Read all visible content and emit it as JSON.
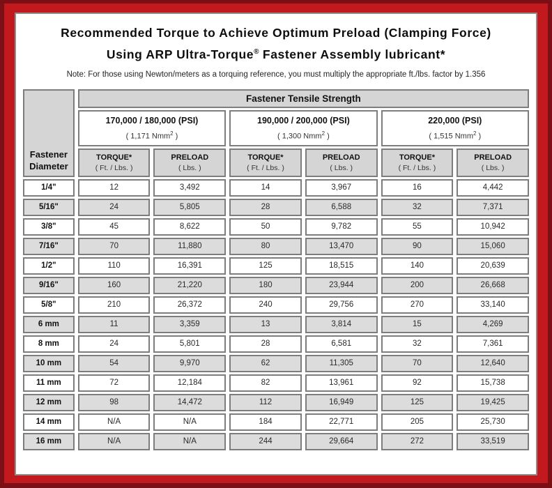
{
  "title": {
    "line1": "Recommended Torque to Achieve Optimum Preload (Clamping Force)",
    "line2_pre": "Using ARP Ultra-Torque",
    "line2_sup": "®",
    "line2_post": " Fastener Assembly lubricant*"
  },
  "note": "Note: For those using Newton/meters as a torquing reference, you must multiply the appropriate ft./lbs. factor by 1.356",
  "colors": {
    "outer_border": "#7c0f15",
    "inner_border": "#c2191f",
    "header_bg": "#d5d5d5",
    "alt_row_bg": "#dcdcdc",
    "cell_border": "#7d7d7d",
    "panel_bg": "#ffffff"
  },
  "table": {
    "corner": {
      "line1": "Fastener",
      "line2": "Diameter"
    },
    "tensile_header": "Fastener Tensile Strength",
    "groups": [
      {
        "psi": "170,000 / 180,000 (PSI)",
        "nmm_pre": "( 1,171 Nmm",
        "nmm_sup": "2",
        "nmm_post": " )",
        "torque_label": "TORQUE*",
        "torque_unit": "( Ft. / Lbs. )",
        "preload_label": "PRELOAD",
        "preload_unit": "( Lbs. )"
      },
      {
        "psi": "190,000 / 200,000 (PSI)",
        "nmm_pre": "( 1,300 Nmm",
        "nmm_sup": "2",
        "nmm_post": " )",
        "torque_label": "TORQUE*",
        "torque_unit": "( Ft. / Lbs. )",
        "preload_label": "PRELOAD",
        "preload_unit": "( Lbs. )"
      },
      {
        "psi": "220,000 (PSI)",
        "nmm_pre": "( 1,515 Nmm",
        "nmm_sup": "2",
        "nmm_post": " )",
        "torque_label": "TORQUE*",
        "torque_unit": "( Ft. / Lbs. )",
        "preload_label": "PRELOAD",
        "preload_unit": "( Lbs. )"
      }
    ],
    "rows": [
      {
        "d": "1/4\"",
        "v": [
          "12",
          "3,492",
          "14",
          "3,967",
          "16",
          "4,442"
        ]
      },
      {
        "d": "5/16\"",
        "v": [
          "24",
          "5,805",
          "28",
          "6,588",
          "32",
          "7,371"
        ]
      },
      {
        "d": "3/8\"",
        "v": [
          "45",
          "8,622",
          "50",
          "9,782",
          "55",
          "10,942"
        ]
      },
      {
        "d": "7/16\"",
        "v": [
          "70",
          "11,880",
          "80",
          "13,470",
          "90",
          "15,060"
        ]
      },
      {
        "d": "1/2\"",
        "v": [
          "110",
          "16,391",
          "125",
          "18,515",
          "140",
          "20,639"
        ]
      },
      {
        "d": "9/16\"",
        "v": [
          "160",
          "21,220",
          "180",
          "23,944",
          "200",
          "26,668"
        ]
      },
      {
        "d": "5/8\"",
        "v": [
          "210",
          "26,372",
          "240",
          "29,756",
          "270",
          "33,140"
        ]
      },
      {
        "d": "6 mm",
        "v": [
          "11",
          "3,359",
          "13",
          "3,814",
          "15",
          "4,269"
        ]
      },
      {
        "d": "8 mm",
        "v": [
          "24",
          "5,801",
          "28",
          "6,581",
          "32",
          "7,361"
        ]
      },
      {
        "d": "10 mm",
        "v": [
          "54",
          "9,970",
          "62",
          "11,305",
          "70",
          "12,640"
        ]
      },
      {
        "d": "11 mm",
        "v": [
          "72",
          "12,184",
          "82",
          "13,961",
          "92",
          "15,738"
        ]
      },
      {
        "d": "12 mm",
        "v": [
          "98",
          "14,472",
          "112",
          "16,949",
          "125",
          "19,425"
        ]
      },
      {
        "d": "14 mm",
        "v": [
          "N/A",
          "N/A",
          "184",
          "22,771",
          "205",
          "25,730"
        ]
      },
      {
        "d": "16 mm",
        "v": [
          "N/A",
          "N/A",
          "244",
          "29,664",
          "272",
          "33,519"
        ]
      }
    ]
  }
}
